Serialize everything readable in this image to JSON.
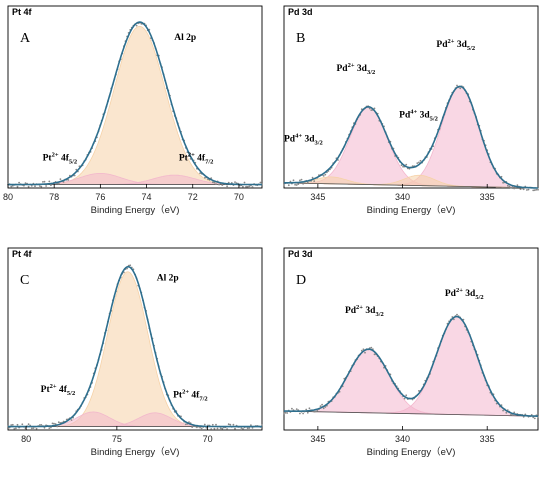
{
  "chart_data": [
    {
      "type": "line",
      "panel_label": "A",
      "title": "Pt 4f",
      "xlabel": "Binding Energy（eV)",
      "xlim": [
        80,
        69
      ],
      "ylim": [
        0,
        1
      ],
      "xticks": [
        80,
        78,
        76,
        74,
        72,
        70
      ],
      "peaks": [
        {
          "name": "Al 2p",
          "center": 74.3,
          "height": 0.92,
          "width": 1.1,
          "color": "#f6d2a8"
        },
        {
          "name": "Pt 4f5/2",
          "center": 76.0,
          "height": 0.065,
          "width": 0.9,
          "color": "#f2b8cc"
        },
        {
          "name": "Pt 4f7/2",
          "center": 72.8,
          "height": 0.055,
          "width": 0.9,
          "color": "#f2b8cc"
        }
      ],
      "baseline": [
        0.02,
        0.02
      ],
      "annotations": [
        {
          "text": "Al 2p",
          "x": 72.8,
          "y": 0.86
        },
        {
          "pre": "Pt",
          "sup": "2+",
          "mid": " 4f",
          "sub": "5/2",
          "x": 78.5,
          "y": 0.16
        },
        {
          "pre": "Pt",
          "sup": "2+",
          "mid": " 4f",
          "sub": "7/2",
          "x": 72.6,
          "y": 0.16
        }
      ]
    },
    {
      "type": "line",
      "panel_label": "B",
      "title": "Pd 3d",
      "xlabel": "Binding Energy（eV)",
      "xlim": [
        347,
        332
      ],
      "ylim": [
        0,
        1
      ],
      "xticks": [
        345,
        340,
        335
      ],
      "peaks": [
        {
          "name": "Pd2+ 3d5/2",
          "center": 336.6,
          "height": 0.58,
          "width": 1.1,
          "color": "#f4b7cd"
        },
        {
          "name": "Pd2+ 3d3/2",
          "center": 342.0,
          "height": 0.45,
          "width": 1.1,
          "color": "#f4b7cd"
        },
        {
          "name": "Pd4+ 3d5/2",
          "center": 339.0,
          "height": 0.06,
          "width": 0.9,
          "color": "#f6d2a8"
        },
        {
          "name": "Pd4+ 3d3/2",
          "center": 344.2,
          "height": 0.04,
          "width": 0.9,
          "color": "#f6d2a8"
        }
      ],
      "baseline": [
        0.03,
        0.0
      ],
      "annotations": [
        {
          "pre": "Pd",
          "sup": "2+",
          "mid": " 3d",
          "sub": "3/2",
          "x": 343.9,
          "y": 0.68
        },
        {
          "pre": "Pd",
          "sup": "2+",
          "mid": " 3d",
          "sub": "5/2",
          "x": 338.0,
          "y": 0.82
        },
        {
          "pre": "Pd",
          "sup": "4+",
          "mid": " 3d",
          "sub": "3/2",
          "x": 347.0,
          "y": 0.27
        },
        {
          "pre": "Pd",
          "sup": "4+",
          "mid": " 3d",
          "sub": "5/2",
          "x": 340.2,
          "y": 0.41
        }
      ]
    },
    {
      "type": "line",
      "panel_label": "C",
      "title": "Pt 4f",
      "xlabel": "Binding Energy（eV)",
      "xlim": [
        81,
        67
      ],
      "ylim": [
        0,
        1
      ],
      "xticks": [
        80,
        75,
        70
      ],
      "peaks": [
        {
          "name": "Al 2p",
          "center": 74.4,
          "height": 0.9,
          "width": 1.1,
          "color": "#f6d2a8"
        },
        {
          "name": "Pt 4f5/2",
          "center": 76.3,
          "height": 0.085,
          "width": 0.9,
          "color": "#f2b8cc"
        },
        {
          "name": "Pt 4f7/2",
          "center": 72.9,
          "height": 0.08,
          "width": 0.9,
          "color": "#f2b8cc"
        }
      ],
      "baseline": [
        0.02,
        0.02
      ],
      "annotations": [
        {
          "text": "Al 2p",
          "x": 72.8,
          "y": 0.87
        },
        {
          "pre": "Pt",
          "sup": "2+",
          "mid": " 4f",
          "sub": "5/2",
          "x": 79.2,
          "y": 0.22
        },
        {
          "pre": "Pt",
          "sup": "2+",
          "mid": " 4f",
          "sub": "7/2",
          "x": 71.9,
          "y": 0.19
        }
      ]
    },
    {
      "type": "line",
      "panel_label": "D",
      "title": "Pd 3d",
      "xlabel": "Binding Energy（eV)",
      "xlim": [
        347,
        332
      ],
      "ylim": [
        0,
        1
      ],
      "xticks": [
        345,
        340,
        335
      ],
      "peaks": [
        {
          "name": "Pd2+ 3d5/2",
          "center": 336.8,
          "height": 0.57,
          "width": 1.2,
          "color": "#f4b7cd"
        },
        {
          "name": "Pd2+ 3d3/2",
          "center": 342.0,
          "height": 0.37,
          "width": 1.2,
          "color": "#f4b7cd"
        }
      ],
      "baseline": [
        0.11,
        0.08
      ],
      "annotations": [
        {
          "pre": "Pd",
          "sup": "2+",
          "mid": " 3d",
          "sub": "3/2",
          "x": 343.4,
          "y": 0.68
        },
        {
          "pre": "Pd",
          "sup": "2+",
          "mid": " 3d",
          "sub": "5/2",
          "x": 337.5,
          "y": 0.78
        }
      ]
    }
  ]
}
